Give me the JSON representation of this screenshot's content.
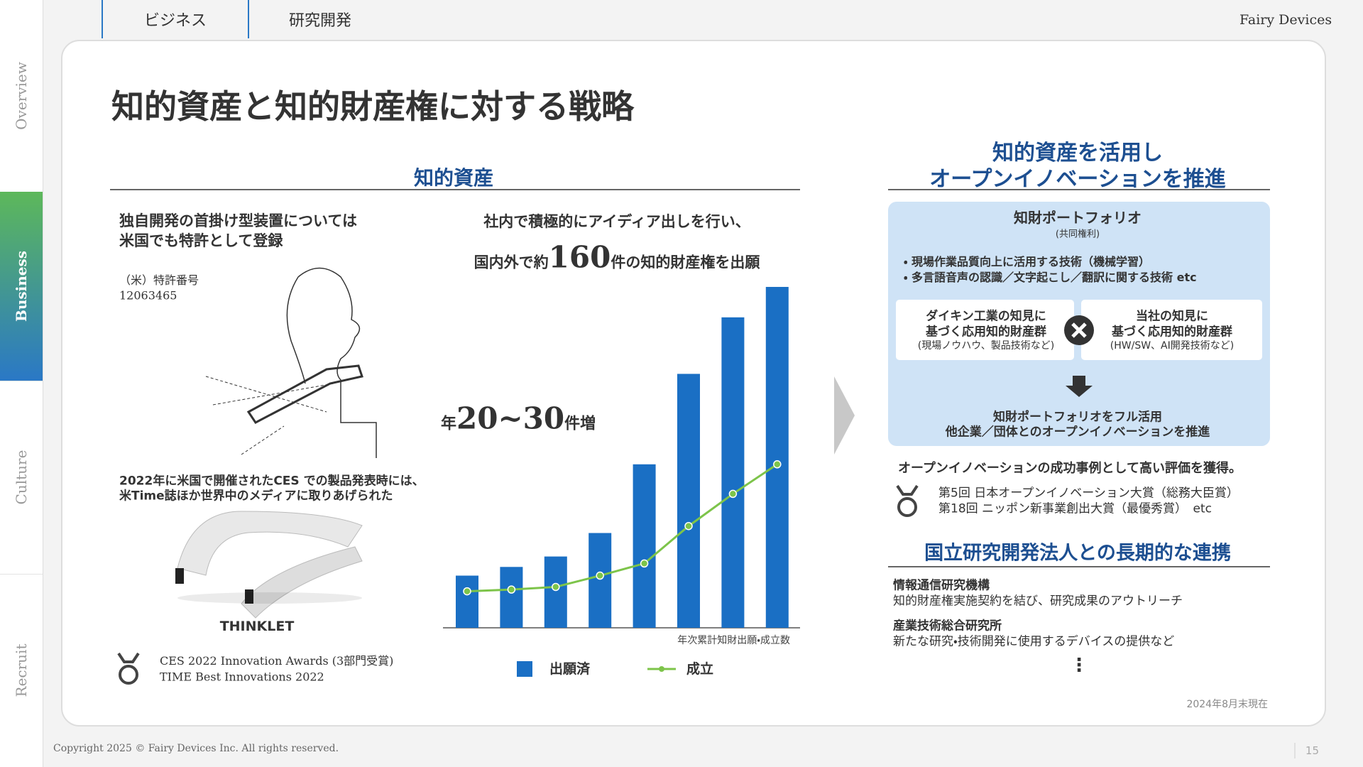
{
  "sidebar": {
    "tabs": [
      "Overview",
      "Business",
      "Culture",
      "Recruit"
    ]
  },
  "header": {
    "tabs": [
      "ビジネス",
      "研究開発"
    ],
    "logo": "Fairy Devices"
  },
  "title": "知的資産と知的財産権に対する戦略",
  "left_section": {
    "heading": "知的資産",
    "patent": {
      "text": [
        "独自開発の首掛け型装置については",
        "米国でも特許として登録"
      ],
      "label": "（米）特許番号",
      "number": "12063465"
    },
    "media": {
      "text": [
        "2022年に米国で開催されたCES での製品発表時には、",
        "米Time誌ほか世界中のメディアに取りあげられた"
      ],
      "product": "THINKLET"
    },
    "awards": [
      "CES 2022 Innovation Awards (3部門受賞)",
      "TIME Best Innovations 2022"
    ]
  },
  "chart_section": {
    "headline": "社内で積極的にアイディア出しを行い、",
    "headline2": [
      "国内外で約",
      "160",
      "件の知的財産権を出願"
    ],
    "growth": [
      "年",
      "20~30",
      "件増"
    ]
  },
  "chart_data": {
    "type": "bar",
    "x_label": "年次累計知財出願・成立数",
    "series": [
      {
        "name": "出願済",
        "color": "#1a6fc4",
        "values": [
          60,
          70,
          82,
          109,
          188,
          292,
          357,
          392
        ]
      },
      {
        "name": "成立",
        "type": "line",
        "color": "#7dc44a",
        "values": [
          42,
          44,
          47,
          60,
          74,
          117,
          154,
          188
        ]
      }
    ]
  },
  "right_section": {
    "heading": [
      "知的資産を活用し",
      "オープンイノベーションを推進"
    ],
    "portfolio": {
      "title": "知財ポートフォリオ",
      "subtitle": "(共同権利)",
      "bullets": [
        "現場作業品質向上に活用する技術（機械学習）",
        "多言語音声の認識／文字起こし／翻訳に関する技術 etc"
      ],
      "boxes": [
        [
          "ダイキン工業の知見に",
          "基づく応用知的財産群",
          "(現場ノウハウ、製品技術など)"
        ],
        [
          "当社の知見に",
          "基づく応用知的財産群",
          "(HW/SW、AI開発技術など)"
        ]
      ],
      "result": [
        "知財ポートフォリオをフル活用",
        "他企業／団体とのオープンイノベーションを推進"
      ]
    },
    "evaluation": {
      "text": "オープンイノベーションの成功事例として高い評価を獲得。",
      "awards": [
        "第5回 日本オープンイノベーション大賞（総務大臣賞）",
        "第18回 ニッポン新事業創出大賞（最優秀賞）　etc"
      ]
    },
    "partners": {
      "heading": "国立研究開発法人との長期的な連携",
      "items": [
        {
          "name": "情報通信研究機構",
          "desc": "知的財産権実施契約を結び、研究成果のアウトリーチ"
        },
        {
          "name": "産業技術総合研究所",
          "desc": "新たな研究・技術開発に使用するデバイスの提供など"
        }
      ],
      "more": "⋮"
    },
    "note": "2024年8月末現在"
  },
  "footer": {
    "copyright": "Copyright  2025 © Fairy Devices Inc. All rights reserved.",
    "page": "15"
  }
}
